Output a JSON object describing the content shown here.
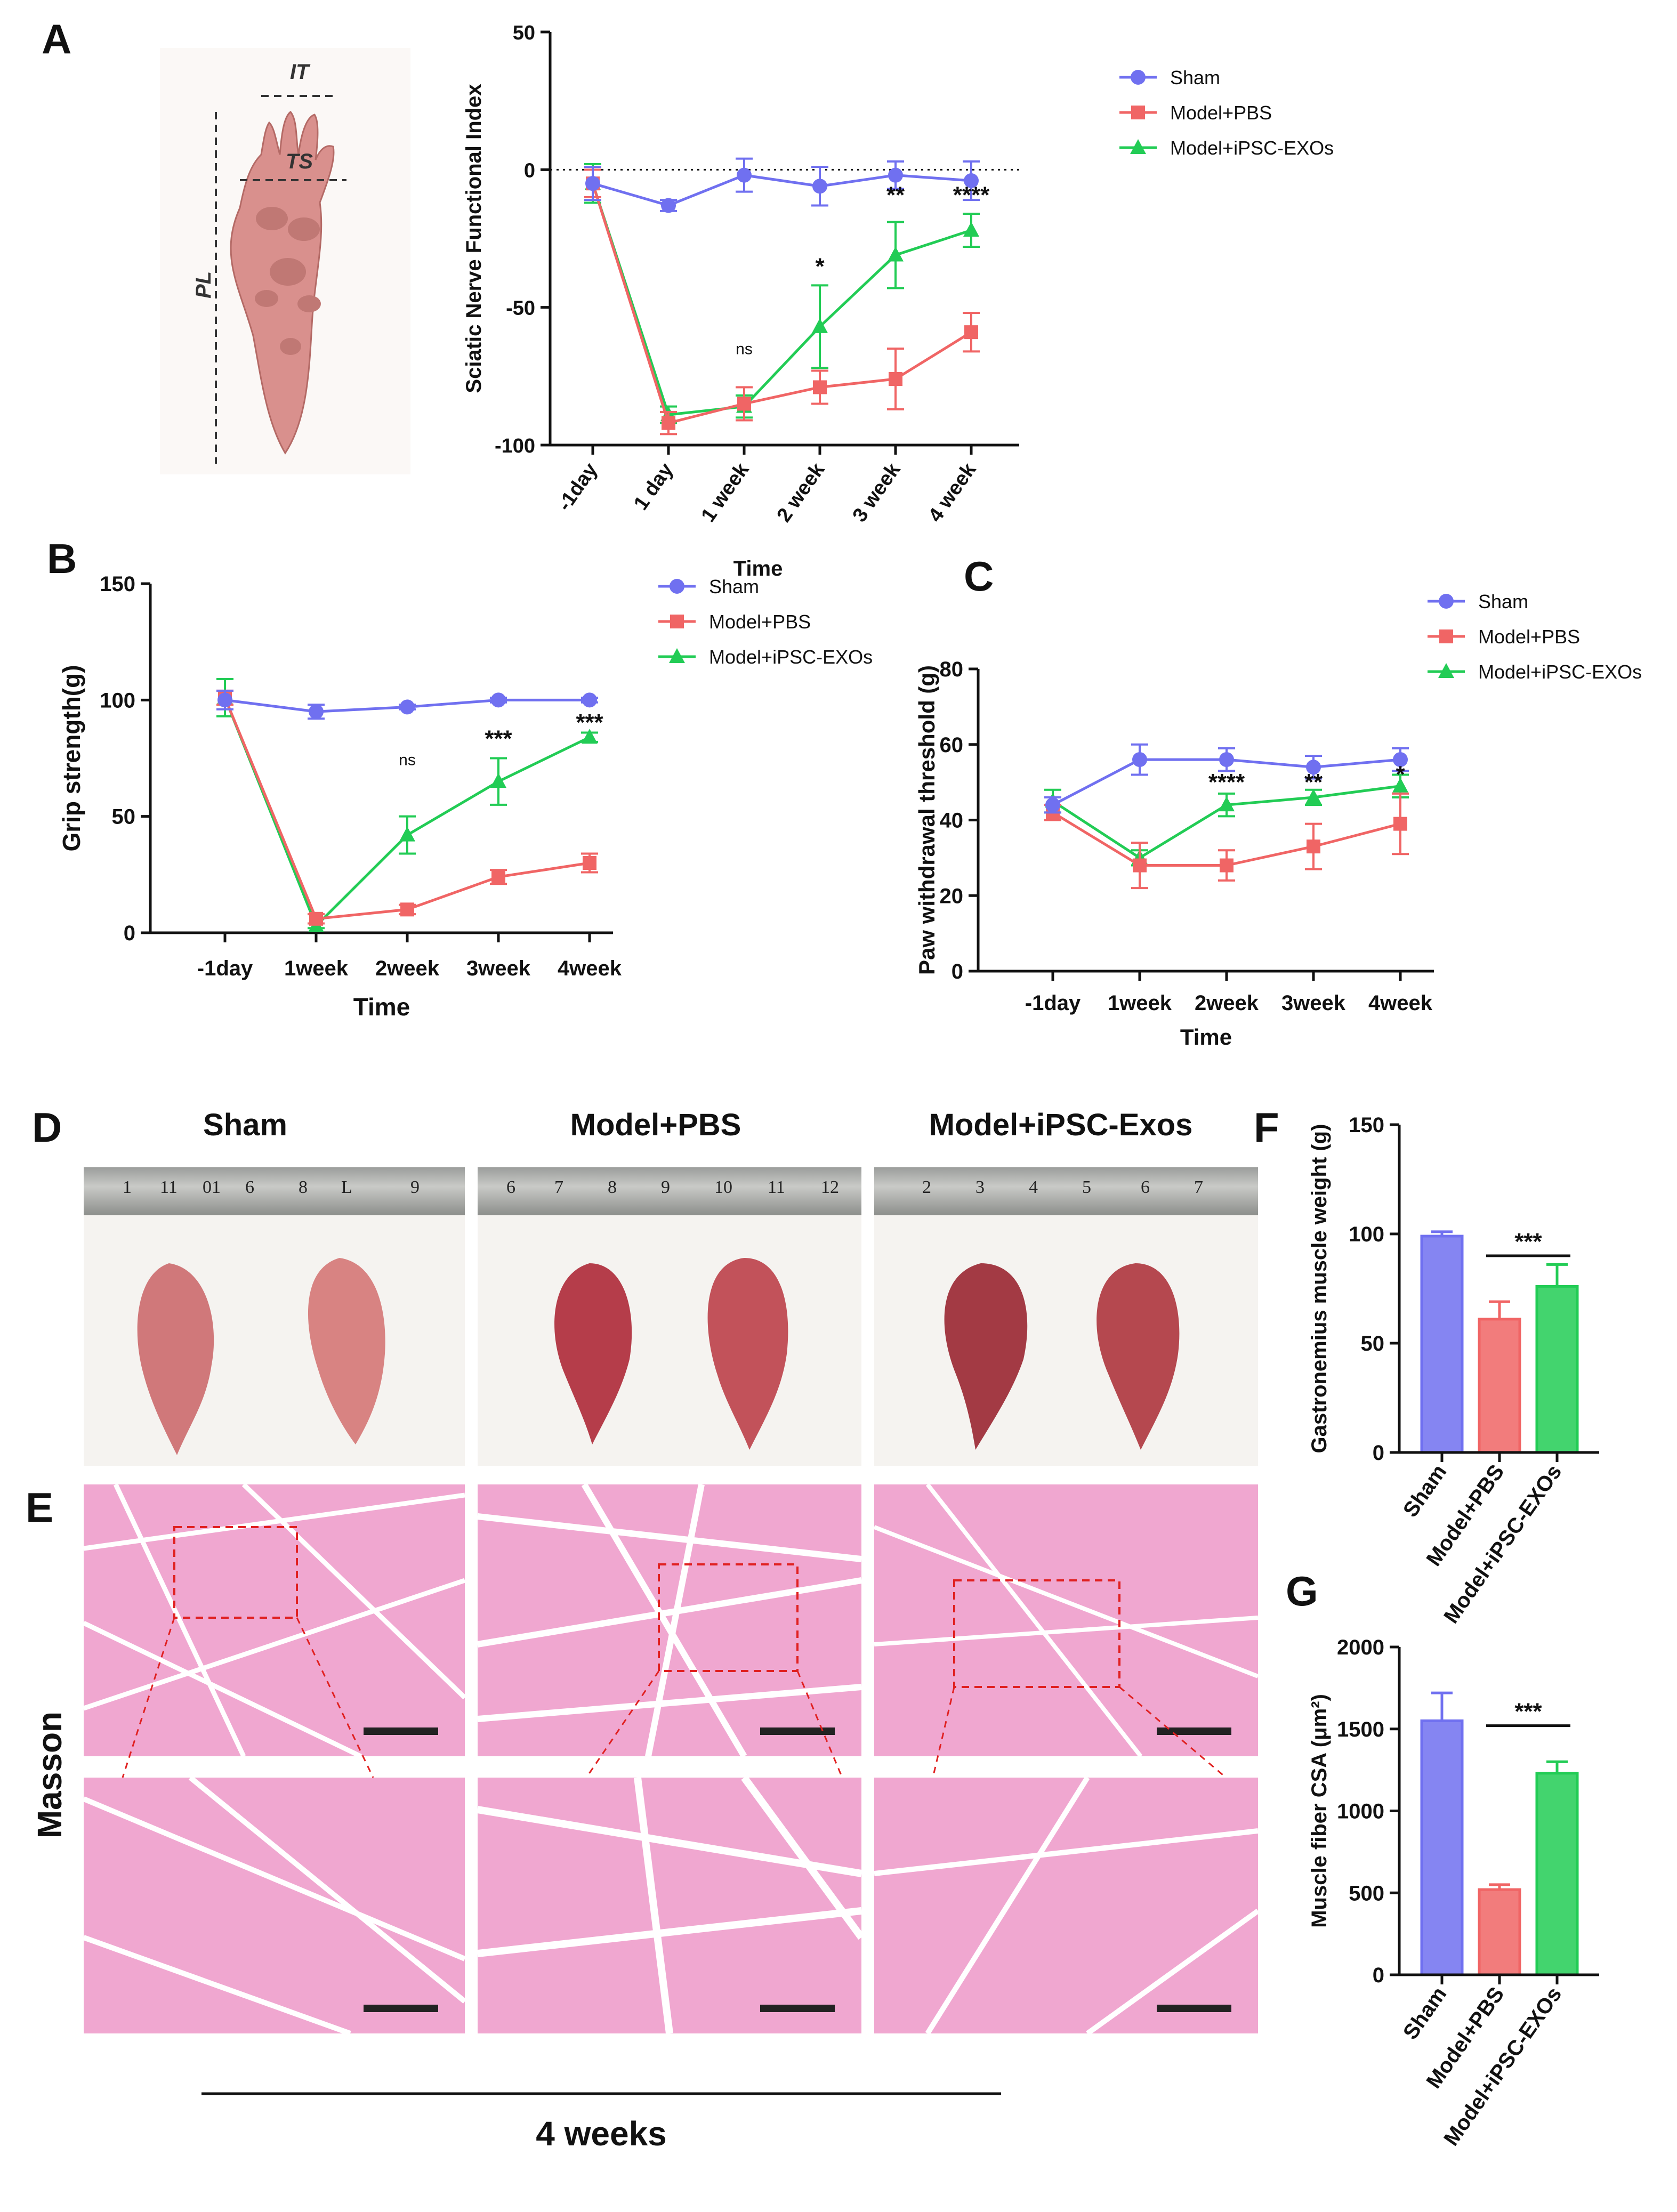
{
  "panel_letters": {
    "a": "A",
    "b": "B",
    "c": "C",
    "d": "D",
    "e": "E",
    "f": "F",
    "g": "G"
  },
  "paw_labels": {
    "it": "IT",
    "ts": "TS",
    "pl": "PL"
  },
  "photo_headers": [
    "Sham",
    "Model+PBS",
    "Model+iPSC-Exos"
  ],
  "masson_label": "Masson",
  "duration_label": "4 weeks",
  "ruler_numbers": [
    [
      "1",
      "11",
      "01",
      "6",
      "8",
      "L",
      "9"
    ],
    [
      "6",
      "7",
      "8",
      "9",
      "10",
      "11",
      "12"
    ],
    [
      "2",
      "3",
      "4",
      "5",
      "6",
      "7"
    ]
  ],
  "colors": {
    "sham": "#7070f0",
    "pbs": "#f06565",
    "exos": "#22cc55",
    "histo": "#f0a7d0"
  },
  "chart_data": [
    {
      "id": "A",
      "type": "line",
      "title": "",
      "ylabel": "Sciatic Nerve  Functional  Index",
      "xlabel": "Time",
      "ylim": [
        -100,
        50
      ],
      "yticks": [
        -100,
        -50,
        0,
        50
      ],
      "categories": [
        "-1day",
        "1 day",
        "1 week",
        "2 week",
        "3 week",
        "4 week"
      ],
      "baseline": 0,
      "series": [
        {
          "name": "Sham",
          "color": "#7070f0",
          "marker": "circle",
          "values": [
            -5,
            -13,
            -2,
            -6,
            -2,
            -4
          ],
          "errors": [
            6,
            2,
            6,
            7,
            5,
            7
          ]
        },
        {
          "name": "Model+PBS",
          "color": "#f06565",
          "marker": "square",
          "values": [
            -5,
            -92,
            -85,
            -79,
            -76,
            -59
          ],
          "errors": [
            5,
            4,
            6,
            6,
            11,
            7
          ]
        },
        {
          "name": "Model+iPSC-EXOs",
          "color": "#22cc55",
          "marker": "triangle",
          "values": [
            -5,
            -89,
            -86,
            -57,
            -31,
            -22
          ],
          "errors": [
            7,
            3,
            4,
            15,
            12,
            6
          ]
        }
      ],
      "annotations": [
        {
          "category": "1 week",
          "text": "ns",
          "value": -67
        },
        {
          "category": "2 week",
          "text": "*",
          "value": -38
        },
        {
          "category": "3 week",
          "text": "**",
          "value": -12
        },
        {
          "category": "4 week",
          "text": "****",
          "value": -12
        }
      ],
      "legend": {
        "position": "right"
      }
    },
    {
      "id": "B",
      "type": "line",
      "ylabel": "Grip strength(g)",
      "xlabel": "Time",
      "ylim": [
        0,
        150
      ],
      "yticks": [
        0,
        50,
        100,
        150
      ],
      "categories": [
        "-1day",
        "1week",
        "2week",
        "3week",
        "4week"
      ],
      "series": [
        {
          "name": "Sham",
          "color": "#7070f0",
          "marker": "circle",
          "values": [
            100,
            95,
            97,
            100,
            100
          ],
          "errors": [
            4,
            3,
            1,
            1,
            1
          ]
        },
        {
          "name": "Model+PBS",
          "color": "#f06565",
          "marker": "square",
          "values": [
            101,
            6,
            10,
            24,
            30
          ],
          "errors": [
            3,
            2,
            2,
            3,
            4
          ]
        },
        {
          "name": "Model+iPSC-EXOs",
          "color": "#22cc55",
          "marker": "triangle",
          "values": [
            101,
            3,
            42,
            65,
            84
          ],
          "errors": [
            8,
            1,
            8,
            10,
            2
          ]
        }
      ],
      "annotations": [
        {
          "category": "2week",
          "text": "ns",
          "value": 72
        },
        {
          "category": "3week",
          "text": "***",
          "value": 80
        },
        {
          "category": "4week",
          "text": "***",
          "value": 87
        }
      ],
      "legend": {
        "position": "top-right"
      }
    },
    {
      "id": "C",
      "type": "line",
      "ylabel": "Paw withdrawal threshold (g)",
      "xlabel": "Time",
      "ylim": [
        0,
        80
      ],
      "yticks": [
        0,
        20,
        40,
        60,
        80
      ],
      "categories": [
        "-1day",
        "1week",
        "2week",
        "3week",
        "4week"
      ],
      "series": [
        {
          "name": "Sham",
          "color": "#7070f0",
          "marker": "circle",
          "values": [
            44,
            56,
            56,
            54,
            56
          ],
          "errors": [
            2,
            4,
            3,
            3,
            3
          ]
        },
        {
          "name": "Model+PBS",
          "color": "#f06565",
          "marker": "square",
          "values": [
            42,
            28,
            28,
            33,
            39
          ],
          "errors": [
            2,
            6,
            4,
            6,
            8
          ]
        },
        {
          "name": "Model+iPSC-EXOs",
          "color": "#22cc55",
          "marker": "triangle",
          "values": [
            45,
            30,
            44,
            46,
            49
          ],
          "errors": [
            3,
            2,
            3,
            2,
            3
          ]
        }
      ],
      "annotations": [
        {
          "category": "2week",
          "text": "****",
          "value": 48
        },
        {
          "category": "3week",
          "text": "**",
          "value": 48
        },
        {
          "category": "4week",
          "text": "*",
          "value": 50
        }
      ],
      "legend": {
        "position": "top-right"
      }
    },
    {
      "id": "F",
      "type": "bar",
      "ylabel": "Gastronemius muscle weight (g)",
      "xlabel": "",
      "ylim": [
        0,
        150
      ],
      "yticks": [
        0,
        50,
        100,
        150
      ],
      "categories": [
        "Sham",
        "Model+PBS",
        "Model+iPSC-EXOs"
      ],
      "values": [
        99,
        61,
        76
      ],
      "errors": [
        2,
        8,
        10
      ],
      "colors": [
        "#7070f0",
        "#f06565",
        "#22cc55"
      ],
      "annotations": [
        {
          "from": "Model+PBS",
          "to": "Model+iPSC-EXOs",
          "text": "***",
          "value": 90
        }
      ]
    },
    {
      "id": "G",
      "type": "bar",
      "ylabel": "Muscle fiber CSA (μm²)",
      "xlabel": "",
      "ylim": [
        0,
        2000
      ],
      "yticks": [
        0,
        500,
        1000,
        1500,
        2000
      ],
      "categories": [
        "Sham",
        "Model+PBS",
        "Model+iPSC-EXOs"
      ],
      "values": [
        1550,
        520,
        1230
      ],
      "errors": [
        170,
        30,
        70
      ],
      "colors": [
        "#7070f0",
        "#f06565",
        "#22cc55"
      ],
      "annotations": [
        {
          "from": "Model+PBS",
          "to": "Model+iPSC-EXOs",
          "text": "***",
          "value": 1520
        }
      ]
    }
  ]
}
